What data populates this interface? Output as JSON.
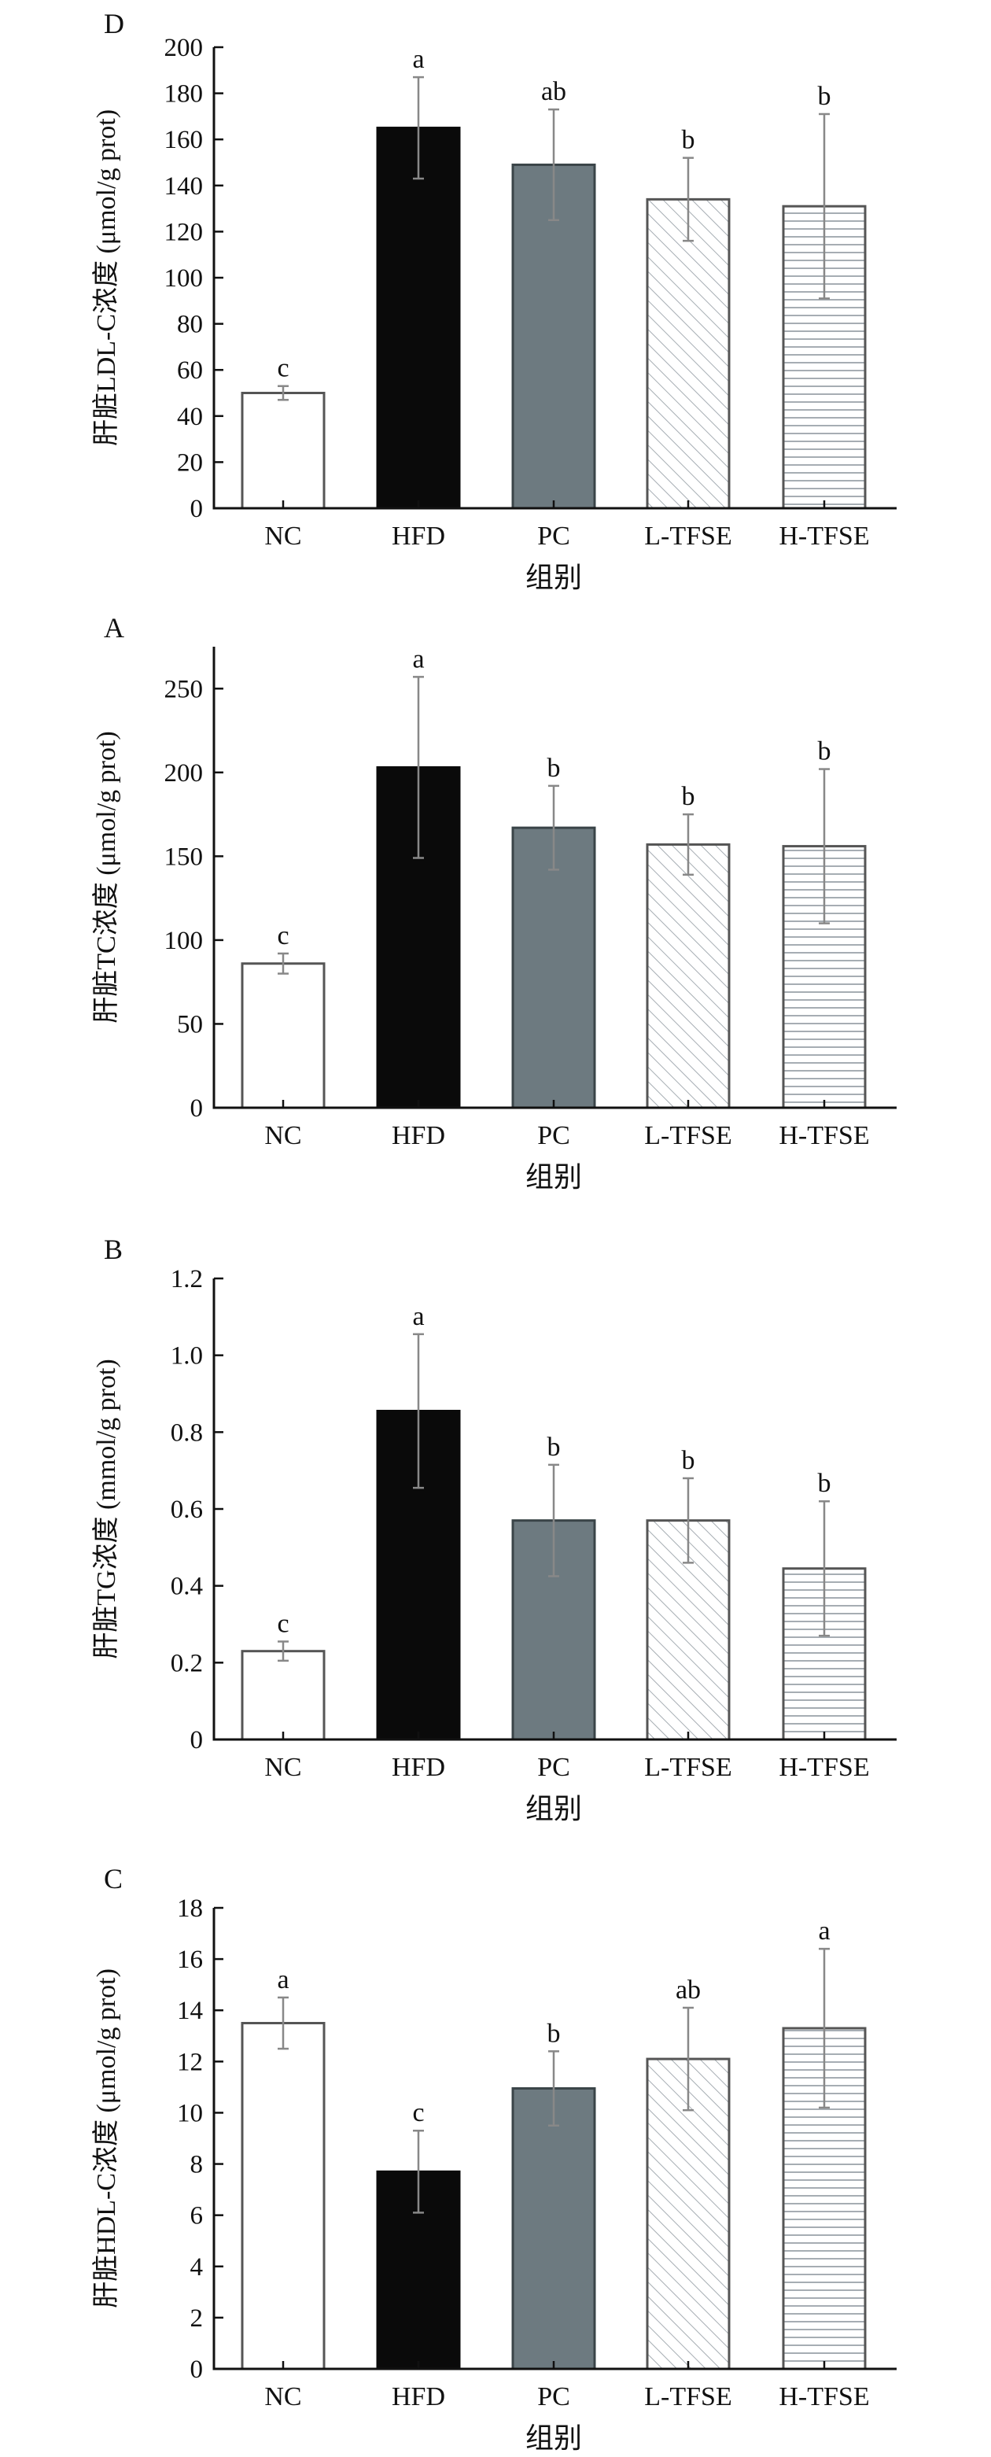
{
  "figure": {
    "panels_order": [
      "D",
      "A",
      "B",
      "C"
    ]
  },
  "chart_data": [
    {
      "panel": "D",
      "type": "bar",
      "categories": [
        "NC",
        "HFD",
        "PC",
        "L-TFSE",
        "H-TFSE"
      ],
      "values": [
        50,
        165,
        149,
        134,
        131
      ],
      "errors": [
        3,
        22,
        24,
        18,
        40
      ],
      "significance": [
        "c",
        "a",
        "ab",
        "b",
        "b"
      ],
      "ylabel": "肝脏LDL-C浓度 (μmol/g prot)",
      "xlabel": "组别",
      "ylim": [
        0,
        200
      ],
      "yticks": [
        0,
        20,
        40,
        60,
        80,
        100,
        120,
        140,
        160,
        180,
        200
      ],
      "grid": false,
      "legend": "none"
    },
    {
      "panel": "A",
      "type": "bar",
      "categories": [
        "NC",
        "HFD",
        "PC",
        "L-TFSE",
        "H-TFSE"
      ],
      "values": [
        86,
        203,
        167,
        157,
        156
      ],
      "errors": [
        6,
        54,
        25,
        18,
        46
      ],
      "significance": [
        "c",
        "a",
        "b",
        "b",
        "b"
      ],
      "ylabel": "肝脏TC浓度 (μmol/g prot)",
      "xlabel": "组别",
      "ylim": [
        0,
        275
      ],
      "yticks": [
        0,
        50,
        100,
        150,
        200,
        250
      ],
      "grid": false,
      "legend": "none"
    },
    {
      "panel": "B",
      "type": "bar",
      "categories": [
        "NC",
        "HFD",
        "PC",
        "L-TFSE",
        "H-TFSE"
      ],
      "values": [
        0.23,
        0.855,
        0.57,
        0.57,
        0.445
      ],
      "errors": [
        0.025,
        0.2,
        0.145,
        0.11,
        0.175
      ],
      "significance": [
        "c",
        "a",
        "b",
        "b",
        "b"
      ],
      "ylabel": "肝脏TG浓度 (mmol/g prot)",
      "xlabel": "组别",
      "ylim": [
        0,
        1.2
      ],
      "yticks": [
        "0",
        "0.2",
        "0.4",
        "0.6",
        "0.8",
        "1.0",
        "1.2"
      ],
      "grid": false,
      "legend": "none"
    },
    {
      "panel": "C",
      "type": "bar",
      "categories": [
        "NC",
        "HFD",
        "PC",
        "L-TFSE",
        "H-TFSE"
      ],
      "values": [
        13.5,
        7.7,
        10.95,
        12.1,
        13.3
      ],
      "errors": [
        1.0,
        1.6,
        1.45,
        2.0,
        3.1
      ],
      "significance": [
        "a",
        "c",
        "b",
        "ab",
        "a"
      ],
      "ylabel": "肝脏HDL-C浓度 (μmol/g prot)",
      "xlabel": "组别",
      "ylim": [
        0,
        18
      ],
      "yticks": [
        0,
        2,
        4,
        6,
        8,
        10,
        12,
        14,
        16,
        18
      ],
      "grid": false,
      "legend": "none"
    }
  ],
  "styles": {
    "bar_fills": [
      "#ffffff",
      "#0a0a0a",
      "#6d7a80",
      "diag-hatch",
      "horiz-hatch"
    ],
    "error_bar_color": "#888888",
    "axis_color": "#111111"
  }
}
